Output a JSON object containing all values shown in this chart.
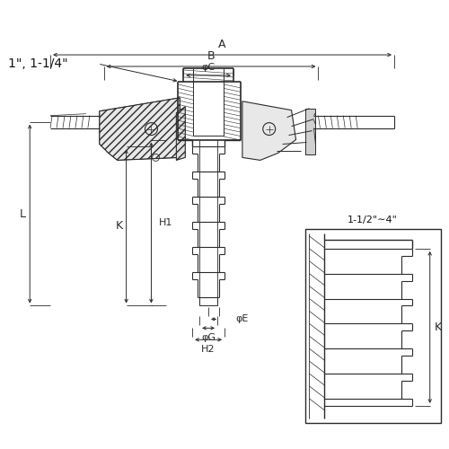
{
  "bg_color": "#ffffff",
  "lc": "#2a2a2a",
  "dc": "#2a2a2a",
  "fig_size": [
    5.0,
    5.0
  ],
  "dpi": 100,
  "labels": {
    "top_note": "1\", 1-1/4\"",
    "A": "A",
    "B": "B",
    "phiC": "φC",
    "L": "L",
    "K": "K",
    "H1": "H1",
    "phiE": "φE",
    "phiG": "φG",
    "H2": "H2",
    "side_note": "1-1/2\"∼4\"",
    "side_K": "K"
  }
}
